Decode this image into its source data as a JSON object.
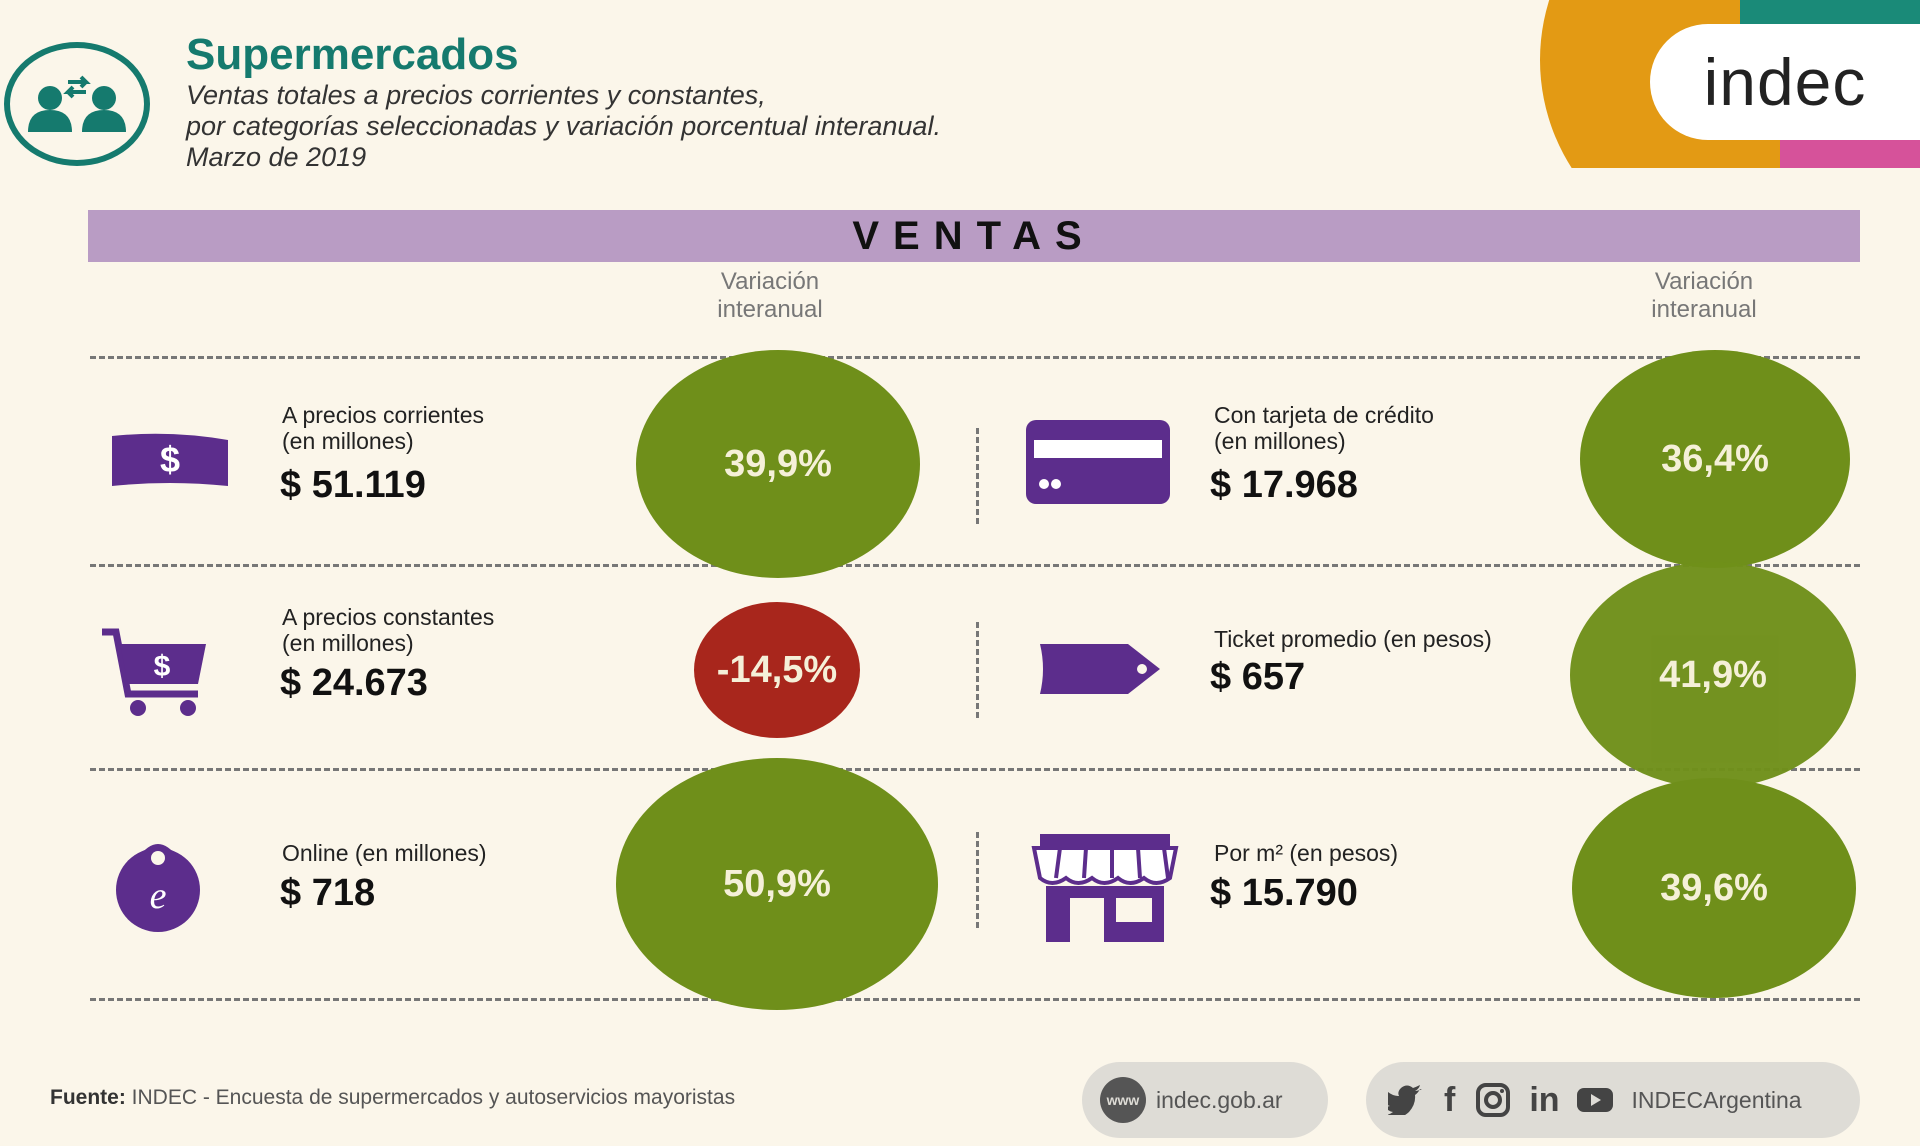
{
  "header": {
    "title": "Supermercados",
    "subtitle_line1": "Ventas totales a precios corrientes y constantes,",
    "subtitle_line2": "por categorías seleccionadas y variación porcentual interanual.",
    "subtitle_line3": "Marzo de 2019",
    "brand": "indec"
  },
  "section_title": "VENTAS",
  "variation_header_line1": "Variación",
  "variation_header_line2": "interanual",
  "items": [
    {
      "icon": "bill-icon",
      "label1": "A precios corrientes",
      "label2": "(en millones)",
      "value": "$ 51.119",
      "variation": "39,9%"
    },
    {
      "icon": "cart-icon",
      "label1": "A precios constantes",
      "label2": "(en millones)",
      "value": "$ 24.673",
      "variation": "-14,5%"
    },
    {
      "icon": "online-bag-icon",
      "label1": "Online (en millones)",
      "label2": "",
      "value": "$ 718",
      "variation": "50,9%"
    },
    {
      "icon": "credit-card-icon",
      "label1": "Con tarjeta de crédito",
      "label2": "(en millones)",
      "value": "$ 17.968",
      "variation": "36,4%"
    },
    {
      "icon": "tag-icon",
      "label1": "Ticket promedio (en pesos)",
      "label2": "",
      "value": "$ 657",
      "variation": "41,9%"
    },
    {
      "icon": "store-icon",
      "label1": "Por m² (en pesos)",
      "label2": "",
      "value": "$ 15.790",
      "variation": "39,6%"
    }
  ],
  "footer": {
    "source_label": "Fuente:",
    "source_text": "INDEC - Encuesta de supermercados y autoservicios mayoristas",
    "web_badge": "www",
    "website": "indec.gob.ar",
    "social_handle": "INDECArgentina"
  },
  "colors": {
    "teal": "#157a6e",
    "purple": "#5c2d8c",
    "lilac": "#b99cc4",
    "green_bubble": "#6f8f1a",
    "red_bubble": "#a8261c",
    "brand_orange": "#e39a14",
    "brand_teal": "#1a8a78",
    "brand_pink": "#d6529a"
  }
}
